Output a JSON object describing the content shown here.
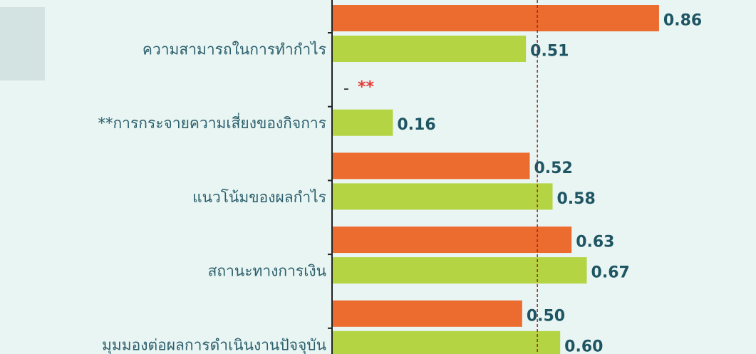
{
  "chart_data": {
    "type": "hbar",
    "categories": [
      "ความสามารถในการทำกำไร",
      "**การกระจายความเสี่ยงของกิจการ",
      "แนวโน้มของผลกำไร",
      "สถานะทางการเงิน",
      "มุมมองต่อผลการดำเนินงานปัจจุบัน"
    ],
    "series": [
      {
        "color": "#ec6b2f",
        "values": [
          0.86,
          null,
          0.52,
          0.63,
          0.5
        ],
        "value_labels": [
          "0.86",
          "-",
          "0.52",
          "0.63",
          "0.50"
        ]
      },
      {
        "color": "#b5d443",
        "values": [
          0.51,
          0.16,
          0.58,
          0.67,
          0.6
        ],
        "value_labels": [
          "0.51",
          "0.16",
          "0.58",
          "0.67",
          "0.60"
        ]
      }
    ],
    "annotations": [
      {
        "text": "**",
        "color": "#e53935"
      }
    ],
    "reference_line": {
      "value": 0.54,
      "color": "#9a2a2a"
    },
    "xlim": [
      0,
      1.1
    ]
  }
}
